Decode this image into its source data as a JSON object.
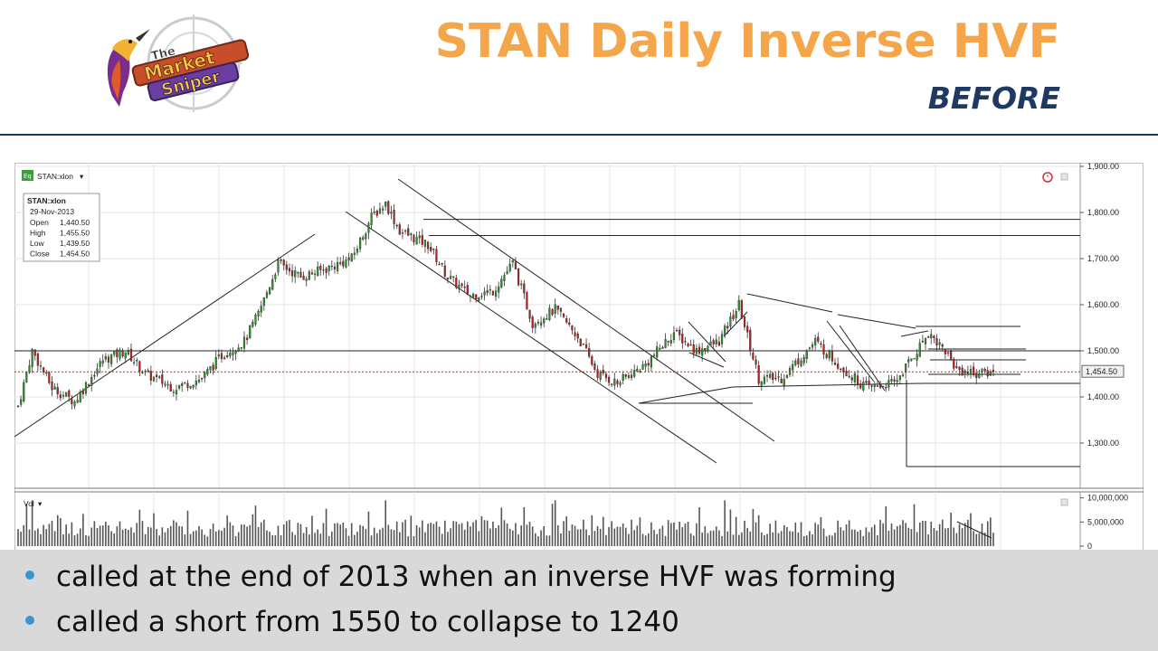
{
  "header": {
    "title": "STAN Daily Inverse HVF",
    "subtitle": "BEFORE",
    "logo_text": [
      "The",
      "Market",
      "Sniper"
    ]
  },
  "chart_data": {
    "type": "candlestick",
    "symbol": "STAN:xlon",
    "hud": {
      "symbol": "STAN:xlon",
      "date": "29-Nov-2013",
      "rows": [
        {
          "label": "Open",
          "value": "1,440.50"
        },
        {
          "label": "High",
          "value": "1,455.50"
        },
        {
          "label": "Low",
          "value": "1,439.50"
        },
        {
          "label": "Close",
          "value": "1,454.50"
        }
      ]
    },
    "price_ticks": [
      "1,900.00",
      "1,800.00",
      "1,700.00",
      "1,600.00",
      "1,500.00",
      "1,400.00",
      "1,300.00"
    ],
    "price_tick_values": [
      1900,
      1800,
      1700,
      1600,
      1500,
      1400,
      1300
    ],
    "ylim": [
      1200,
      1920
    ],
    "last_price_label": "1,454.50",
    "last_price": 1454.5,
    "volume_label": "Vol",
    "volume_ticks": [
      "10,000,000",
      "5,000,000",
      "0"
    ],
    "volume_tick_values": [
      10000000,
      5000000,
      0
    ],
    "volume_ylim": [
      0,
      10500000
    ],
    "bars": 300,
    "price_anchors": [
      [
        0,
        1380
      ],
      [
        5,
        1500
      ],
      [
        12,
        1420
      ],
      [
        20,
        1390
      ],
      [
        30,
        1480
      ],
      [
        38,
        1500
      ],
      [
        45,
        1450
      ],
      [
        55,
        1420
      ],
      [
        65,
        1440
      ],
      [
        72,
        1490
      ],
      [
        80,
        1520
      ],
      [
        85,
        1580
      ],
      [
        92,
        1690
      ],
      [
        100,
        1660
      ],
      [
        110,
        1680
      ],
      [
        118,
        1700
      ],
      [
        125,
        1790
      ],
      [
        130,
        1820
      ],
      [
        135,
        1760
      ],
      [
        145,
        1730
      ],
      [
        152,
        1660
      ],
      [
        160,
        1620
      ],
      [
        168,
        1630
      ],
      [
        175,
        1690
      ],
      [
        182,
        1560
      ],
      [
        190,
        1590
      ],
      [
        198,
        1530
      ],
      [
        205,
        1450
      ],
      [
        212,
        1430
      ],
      [
        222,
        1470
      ],
      [
        232,
        1540
      ],
      [
        240,
        1500
      ],
      [
        248,
        1520
      ],
      [
        255,
        1600
      ],
      [
        262,
        1440
      ],
      [
        270,
        1440
      ],
      [
        282,
        1520
      ],
      [
        292,
        1460
      ],
      [
        300,
        1420
      ],
      [
        310,
        1430
      ],
      [
        318,
        1500
      ],
      [
        322,
        1540
      ],
      [
        328,
        1500
      ],
      [
        332,
        1460
      ],
      [
        340,
        1450
      ],
      [
        345,
        1455
      ]
    ],
    "annotations": {
      "horizontal_levels": [
        1785,
        1750,
        1500,
        1550,
        1480,
        1470,
        1430,
        1240
      ],
      "channel": "descending channel from 1870 peak",
      "lines": "trendlines and converging wedge lines drawn by analyst"
    }
  },
  "notes": {
    "bullets": [
      "called at the end of 2013 when an inverse HVF was forming",
      "called a short from 1550 to collapse to 1240"
    ]
  },
  "colors": {
    "title": "#f5a54a",
    "subtitle": "#1f3864",
    "bullet_dot": "#3a96d0",
    "notes_bg": "#d9d9d9",
    "up_candle": "#2e8b2e",
    "down_candle": "#b22222",
    "last_price_line": "#cc2222"
  }
}
